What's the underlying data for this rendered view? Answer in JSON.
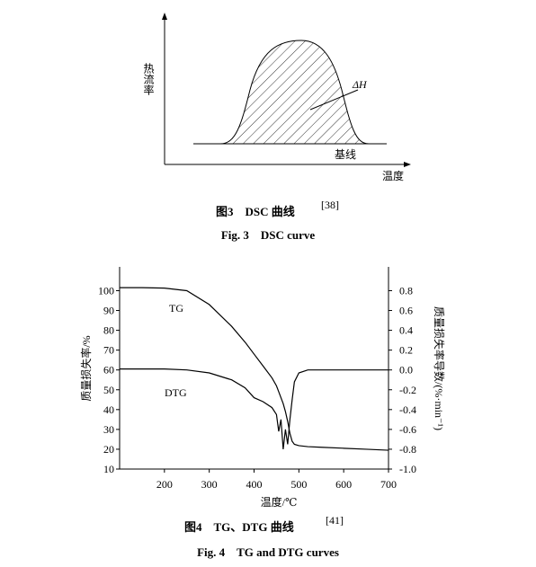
{
  "figure3": {
    "y_label": "热流率",
    "x_label": "温度",
    "area_label": "ΔH",
    "baseline_label": "基线",
    "caption_cn": "图3　DSC 曲线",
    "caption_ref": "[38]",
    "caption_en": "Fig. 3　DSC curve"
  },
  "chart_data": {
    "type": "line",
    "x_label": "温度/℃",
    "y_label": "质量损失率/%",
    "y2_label": "质量损失率导数/(%·min⁻¹)",
    "x": [
      100,
      150,
      200,
      250,
      300,
      350,
      380,
      400,
      420,
      440,
      450,
      455,
      460,
      465,
      470,
      475,
      480,
      485,
      490,
      500,
      520,
      550,
      600,
      650,
      700
    ],
    "series": [
      {
        "name": "TG",
        "color": "#000000",
        "values": [
          101.5,
          101.5,
          101.3,
          100,
          93,
          82,
          74,
          68,
          62,
          56,
          52,
          49,
          46,
          43,
          39,
          34,
          28,
          24,
          22.5,
          21.8,
          21.3,
          21,
          20.5,
          20,
          19.5
        ]
      },
      {
        "name": "DTG",
        "color": "#000000",
        "axis": "y2",
        "values": [
          0.01,
          0.01,
          0.01,
          0,
          -0.03,
          -0.1,
          -0.18,
          -0.28,
          -0.32,
          -0.38,
          -0.45,
          -0.62,
          -0.5,
          -0.8,
          -0.6,
          -0.75,
          -0.5,
          -0.3,
          -0.12,
          -0.03,
          0,
          0,
          0,
          0,
          0
        ]
      }
    ],
    "xlim": [
      100,
      700
    ],
    "xticks": [
      200,
      300,
      400,
      500,
      600,
      700
    ],
    "ylim": [
      10,
      112
    ],
    "yticks": [
      10,
      20,
      30,
      40,
      50,
      60,
      70,
      80,
      90,
      100
    ],
    "y2lim": [
      -1,
      1.04
    ],
    "y2ticks": [
      {
        "value": -1,
        "label": "-1.0"
      },
      -0.8,
      -0.6,
      -0.4,
      -0.2,
      {
        "value": 0,
        "label": "0.0"
      },
      0.2,
      0.4,
      0.6,
      0.8
    ]
  },
  "figure4": {
    "caption_cn": "图4　TG、DTG 曲线",
    "caption_ref": "[41]",
    "caption_en": "Fig. 4　TG and DTG curves"
  }
}
